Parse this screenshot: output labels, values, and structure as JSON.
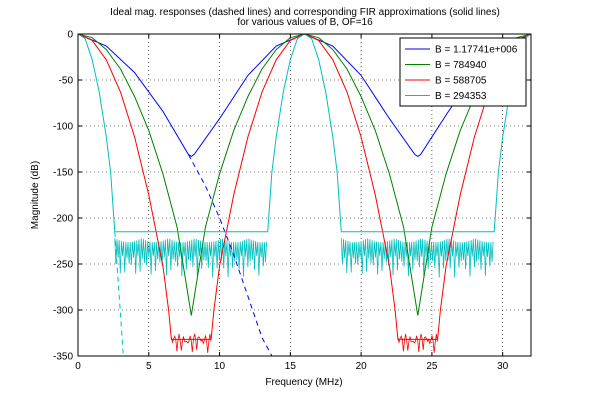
{
  "chart_data": {
    "type": "line",
    "title_lines": [
      "Ideal mag. responses (dashed lines) and corresponding FIR approximations (solid lines)",
      "for various values of B, OF=16"
    ],
    "xlabel": "Frequency (MHz)",
    "ylabel": "Magnitude (dB)",
    "xlim": [
      0,
      32
    ],
    "ylim": [
      -350,
      0
    ],
    "xticks": [
      0,
      5,
      10,
      15,
      20,
      25,
      30
    ],
    "yticks": [
      0,
      -50,
      -100,
      -150,
      -200,
      -250,
      -300,
      -350
    ],
    "grid": true,
    "legend_position": "top-right",
    "series": [
      {
        "name": "B = 1.17741e+006",
        "color": "#0000ff",
        "solid": [
          [
            0,
            0
          ],
          [
            2,
            -13
          ],
          [
            4,
            -42
          ],
          [
            6,
            -84
          ],
          [
            7.8,
            -131
          ],
          [
            8,
            -133
          ],
          [
            8.2,
            -131
          ],
          [
            10,
            -92
          ],
          [
            12,
            -45
          ],
          [
            14,
            -13
          ],
          [
            16,
            0
          ],
          [
            18,
            -13
          ],
          [
            20,
            -45
          ],
          [
            22,
            -92
          ],
          [
            23.8,
            -131
          ],
          [
            24,
            -133
          ],
          [
            24.2,
            -131
          ],
          [
            26,
            -88
          ],
          [
            28,
            -42
          ],
          [
            30,
            -13
          ],
          [
            32,
            0
          ]
        ],
        "dashed": [
          [
            7.8,
            -131
          ],
          [
            9,
            -165
          ],
          [
            10,
            -200
          ],
          [
            11,
            -240
          ],
          [
            12,
            -285
          ],
          [
            13,
            -330
          ],
          [
            13.7,
            -350
          ]
        ]
      },
      {
        "name": "B = 784940",
        "color": "#008000",
        "solid": [
          [
            0,
            0
          ],
          [
            1,
            -4
          ],
          [
            2,
            -17
          ],
          [
            3,
            -38
          ],
          [
            4,
            -68
          ],
          [
            5,
            -105
          ],
          [
            6,
            -152
          ],
          [
            7,
            -210
          ],
          [
            8,
            -306
          ],
          [
            9,
            -210
          ],
          [
            10,
            -152
          ],
          [
            11,
            -105
          ],
          [
            12,
            -68
          ],
          [
            13,
            -38
          ],
          [
            14,
            -17
          ],
          [
            15,
            -4
          ],
          [
            16,
            0
          ],
          [
            17,
            -4
          ],
          [
            18,
            -17
          ],
          [
            19,
            -38
          ],
          [
            20,
            -68
          ],
          [
            21,
            -105
          ],
          [
            22,
            -152
          ],
          [
            23,
            -210
          ],
          [
            24,
            -306
          ],
          [
            25,
            -210
          ],
          [
            26,
            -152
          ],
          [
            27,
            -105
          ],
          [
            28,
            -68
          ],
          [
            29,
            -38
          ],
          [
            30,
            -17
          ],
          [
            31,
            -4
          ],
          [
            32,
            0
          ]
        ],
        "dashed": []
      },
      {
        "name": "B = 588705",
        "color": "#ff0000",
        "solid": [
          [
            0,
            0
          ],
          [
            1,
            -7
          ],
          [
            2,
            -28
          ],
          [
            3,
            -63
          ],
          [
            4,
            -112
          ],
          [
            5,
            -175
          ],
          [
            6,
            -252
          ],
          [
            6.4,
            -300
          ],
          [
            6.6,
            -332
          ],
          [
            9.4,
            -332
          ],
          [
            9.6,
            -300
          ],
          [
            10,
            -252
          ],
          [
            11,
            -175
          ],
          [
            12,
            -112
          ],
          [
            13,
            -63
          ],
          [
            14,
            -28
          ],
          [
            15,
            -7
          ],
          [
            16,
            0
          ],
          [
            17,
            -7
          ],
          [
            18,
            -28
          ],
          [
            19,
            -63
          ],
          [
            20,
            -112
          ],
          [
            21,
            -175
          ],
          [
            22,
            -252
          ],
          [
            22.4,
            -300
          ],
          [
            22.6,
            -332
          ],
          [
            25.4,
            -332
          ],
          [
            25.6,
            -300
          ],
          [
            26,
            -252
          ],
          [
            27,
            -175
          ],
          [
            28,
            -112
          ],
          [
            29,
            -63
          ],
          [
            30,
            -28
          ],
          [
            31,
            -7
          ],
          [
            32,
            0
          ]
        ],
        "dashed": []
      },
      {
        "name": "B = 294353",
        "color": "#00bfbf",
        "solid": [
          [
            0,
            0
          ],
          [
            0.5,
            -5
          ],
          [
            1,
            -28
          ],
          [
            1.5,
            -63
          ],
          [
            2,
            -112
          ],
          [
            2.3,
            -150
          ],
          [
            2.6,
            -215
          ],
          [
            13.4,
            -215
          ],
          [
            13.7,
            -150
          ],
          [
            14,
            -112
          ],
          [
            14.5,
            -63
          ],
          [
            15,
            -28
          ],
          [
            15.5,
            -5
          ],
          [
            16,
            0
          ],
          [
            16.5,
            -5
          ],
          [
            17,
            -28
          ],
          [
            17.5,
            -63
          ],
          [
            18,
            -112
          ],
          [
            18.3,
            -150
          ],
          [
            18.6,
            -215
          ],
          [
            29.4,
            -215
          ],
          [
            29.7,
            -150
          ],
          [
            30,
            -112
          ],
          [
            30.5,
            -63
          ],
          [
            31,
            -28
          ],
          [
            31.5,
            -5
          ],
          [
            32,
            0
          ]
        ],
        "dashed": [
          [
            2.6,
            -215
          ],
          [
            2.8,
            -260
          ],
          [
            3.0,
            -305
          ],
          [
            3.2,
            -350
          ]
        ]
      }
    ],
    "noise_floors": [
      {
        "series": "B = 294353",
        "color": "#00bfbf",
        "segments": [
          [
            2.6,
            13.4
          ],
          [
            18.6,
            29.4
          ]
        ],
        "level": [
          -222,
          -265
        ]
      },
      {
        "series": "B = 588705",
        "color": "#ff0000",
        "segments": [
          [
            6.6,
            9.4
          ],
          [
            22.6,
            25.4
          ]
        ],
        "level": [
          -330,
          -350
        ]
      }
    ]
  }
}
